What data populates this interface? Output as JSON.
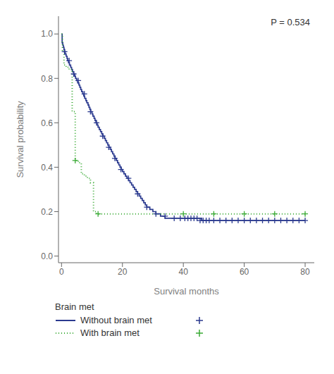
{
  "chart_data": {
    "type": "line",
    "xlabel": "Survival months",
    "ylabel": "Survival probability",
    "annotations": [
      "P = 0.534"
    ],
    "legend": "bottom",
    "legend_title": "Brain met",
    "xlim": [
      -1,
      83
    ],
    "ylim": [
      -0.03,
      1.08
    ],
    "xticks": [
      0,
      20,
      40,
      60,
      80
    ],
    "yticks": [
      {
        "value": 0.0,
        "label": "0.0"
      },
      0.2,
      0.4,
      0.6,
      0.8,
      {
        "value": 1.0,
        "label": "1.0"
      }
    ],
    "series": [
      {
        "name": "Without brain met",
        "type": "step",
        "color": "#2b3a8f",
        "line_style": "solid",
        "x": [
          0,
          0.2,
          0.4,
          0.6,
          0.8,
          1.0,
          1.2,
          1.5,
          1.8,
          2.0,
          2.3,
          2.6,
          3.0,
          3.3,
          3.6,
          4.0,
          4.3,
          4.6,
          5.0,
          5.3,
          5.7,
          6.0,
          6.3,
          6.6,
          7.0,
          7.3,
          7.6,
          8.0,
          8.3,
          8.7,
          9.0,
          9.3,
          9.6,
          10.0,
          10.3,
          10.7,
          11.0,
          11.3,
          11.7,
          12.0,
          12.4,
          12.8,
          13.2,
          13.6,
          14.0,
          14.4,
          14.8,
          15.2,
          15.6,
          16.0,
          16.4,
          16.8,
          17.2,
          17.6,
          18.0,
          18.4,
          18.8,
          19.2,
          19.6,
          20.0,
          20.5,
          21.0,
          21.5,
          22.0,
          22.5,
          23.0,
          23.5,
          24.0,
          24.5,
          25.0,
          25.5,
          26.0,
          26.5,
          27.0,
          27.5,
          28.0,
          28.5,
          29.0,
          29.5,
          30.0,
          30.5,
          31.0,
          31.5,
          32.0,
          32.5,
          33.0,
          33.5,
          34.0,
          34.5,
          35.0,
          35.5,
          36.0,
          36.5,
          37.0,
          37.5,
          38.0,
          39.0,
          40.0,
          41.0,
          42.0,
          43.0,
          44.0,
          45.0,
          46.0,
          47.0,
          48.0,
          50.0,
          52.0,
          54.0,
          56.0,
          58.0,
          60.0,
          62.0,
          64.0,
          66.0,
          68.0,
          70.0,
          72.0,
          74.0,
          76.0,
          78.0,
          80.0
        ],
        "values": [
          1.0,
          0.96,
          0.95,
          0.94,
          0.93,
          0.92,
          0.91,
          0.9,
          0.89,
          0.88,
          0.87,
          0.86,
          0.85,
          0.84,
          0.83,
          0.82,
          0.81,
          0.8,
          0.79,
          0.78,
          0.77,
          0.76,
          0.75,
          0.74,
          0.73,
          0.72,
          0.71,
          0.7,
          0.69,
          0.68,
          0.67,
          0.66,
          0.65,
          0.64,
          0.63,
          0.62,
          0.61,
          0.6,
          0.59,
          0.58,
          0.57,
          0.56,
          0.55,
          0.54,
          0.53,
          0.52,
          0.51,
          0.5,
          0.49,
          0.48,
          0.47,
          0.46,
          0.45,
          0.44,
          0.43,
          0.42,
          0.41,
          0.4,
          0.39,
          0.38,
          0.37,
          0.36,
          0.35,
          0.34,
          0.33,
          0.32,
          0.31,
          0.3,
          0.29,
          0.28,
          0.27,
          0.26,
          0.25,
          0.24,
          0.23,
          0.22,
          0.22,
          0.21,
          0.21,
          0.2,
          0.2,
          0.19,
          0.19,
          0.19,
          0.18,
          0.18,
          0.18,
          0.17,
          0.17,
          0.17,
          0.17,
          0.17,
          0.17,
          0.17,
          0.17,
          0.17,
          0.17,
          0.17,
          0.17,
          0.17,
          0.17,
          0.17,
          0.17,
          0.16,
          0.16,
          0.16,
          0.16,
          0.16,
          0.16,
          0.16,
          0.16,
          0.16,
          0.16,
          0.16,
          0.16,
          0.16,
          0.16,
          0.16,
          0.16,
          0.16,
          0.16,
          0.16
        ]
      },
      {
        "name": "With brain met",
        "type": "step",
        "color": "#3aaa35",
        "line_style": "dotted",
        "x": [
          0,
          0.3,
          0.8,
          1.5,
          2.5,
          3.5,
          4.5,
          5.5,
          6.5,
          7.5,
          8.5,
          9.5,
          10.5,
          11.5,
          12.5,
          80.0
        ],
        "values": [
          1.0,
          0.92,
          0.86,
          0.85,
          0.84,
          0.65,
          0.43,
          0.42,
          0.37,
          0.36,
          0.35,
          0.33,
          0.2,
          0.19,
          0.19,
          0.19
        ]
      },
      {
        "type": "scatter",
        "marker": "plus",
        "color": "#2b3a8f",
        "x": [
          1.0,
          2.5,
          4.0,
          5.5,
          7.5,
          9.5,
          11.5,
          13.5,
          15.5,
          17.5,
          19.5,
          22.0,
          25.0,
          28.0,
          31.0,
          34.0,
          37.0,
          39.0,
          40.5,
          41.5,
          42.5,
          43.5,
          44.5,
          45.5,
          46.5,
          47.5,
          48.5,
          50.0,
          52.0,
          54.0,
          56.0,
          58.0,
          60.0,
          62.0,
          64.0,
          66.0,
          68.0,
          70.0,
          72.0,
          74.0,
          76.0,
          78.0,
          80.0
        ],
        "values": [
          0.92,
          0.88,
          0.82,
          0.79,
          0.73,
          0.65,
          0.6,
          0.54,
          0.49,
          0.44,
          0.39,
          0.35,
          0.28,
          0.22,
          0.19,
          0.18,
          0.17,
          0.17,
          0.17,
          0.17,
          0.17,
          0.17,
          0.17,
          0.16,
          0.16,
          0.16,
          0.16,
          0.16,
          0.16,
          0.16,
          0.16,
          0.16,
          0.16,
          0.16,
          0.16,
          0.16,
          0.16,
          0.16,
          0.16,
          0.16,
          0.16,
          0.16,
          0.16
        ]
      },
      {
        "type": "scatter",
        "marker": "plus",
        "color": "#3aaa35",
        "x": [
          4.5,
          12.0,
          40.0,
          50.0,
          60.0,
          70.0,
          80.0
        ],
        "values": [
          0.43,
          0.19,
          0.19,
          0.19,
          0.19,
          0.19,
          0.19
        ]
      }
    ]
  }
}
